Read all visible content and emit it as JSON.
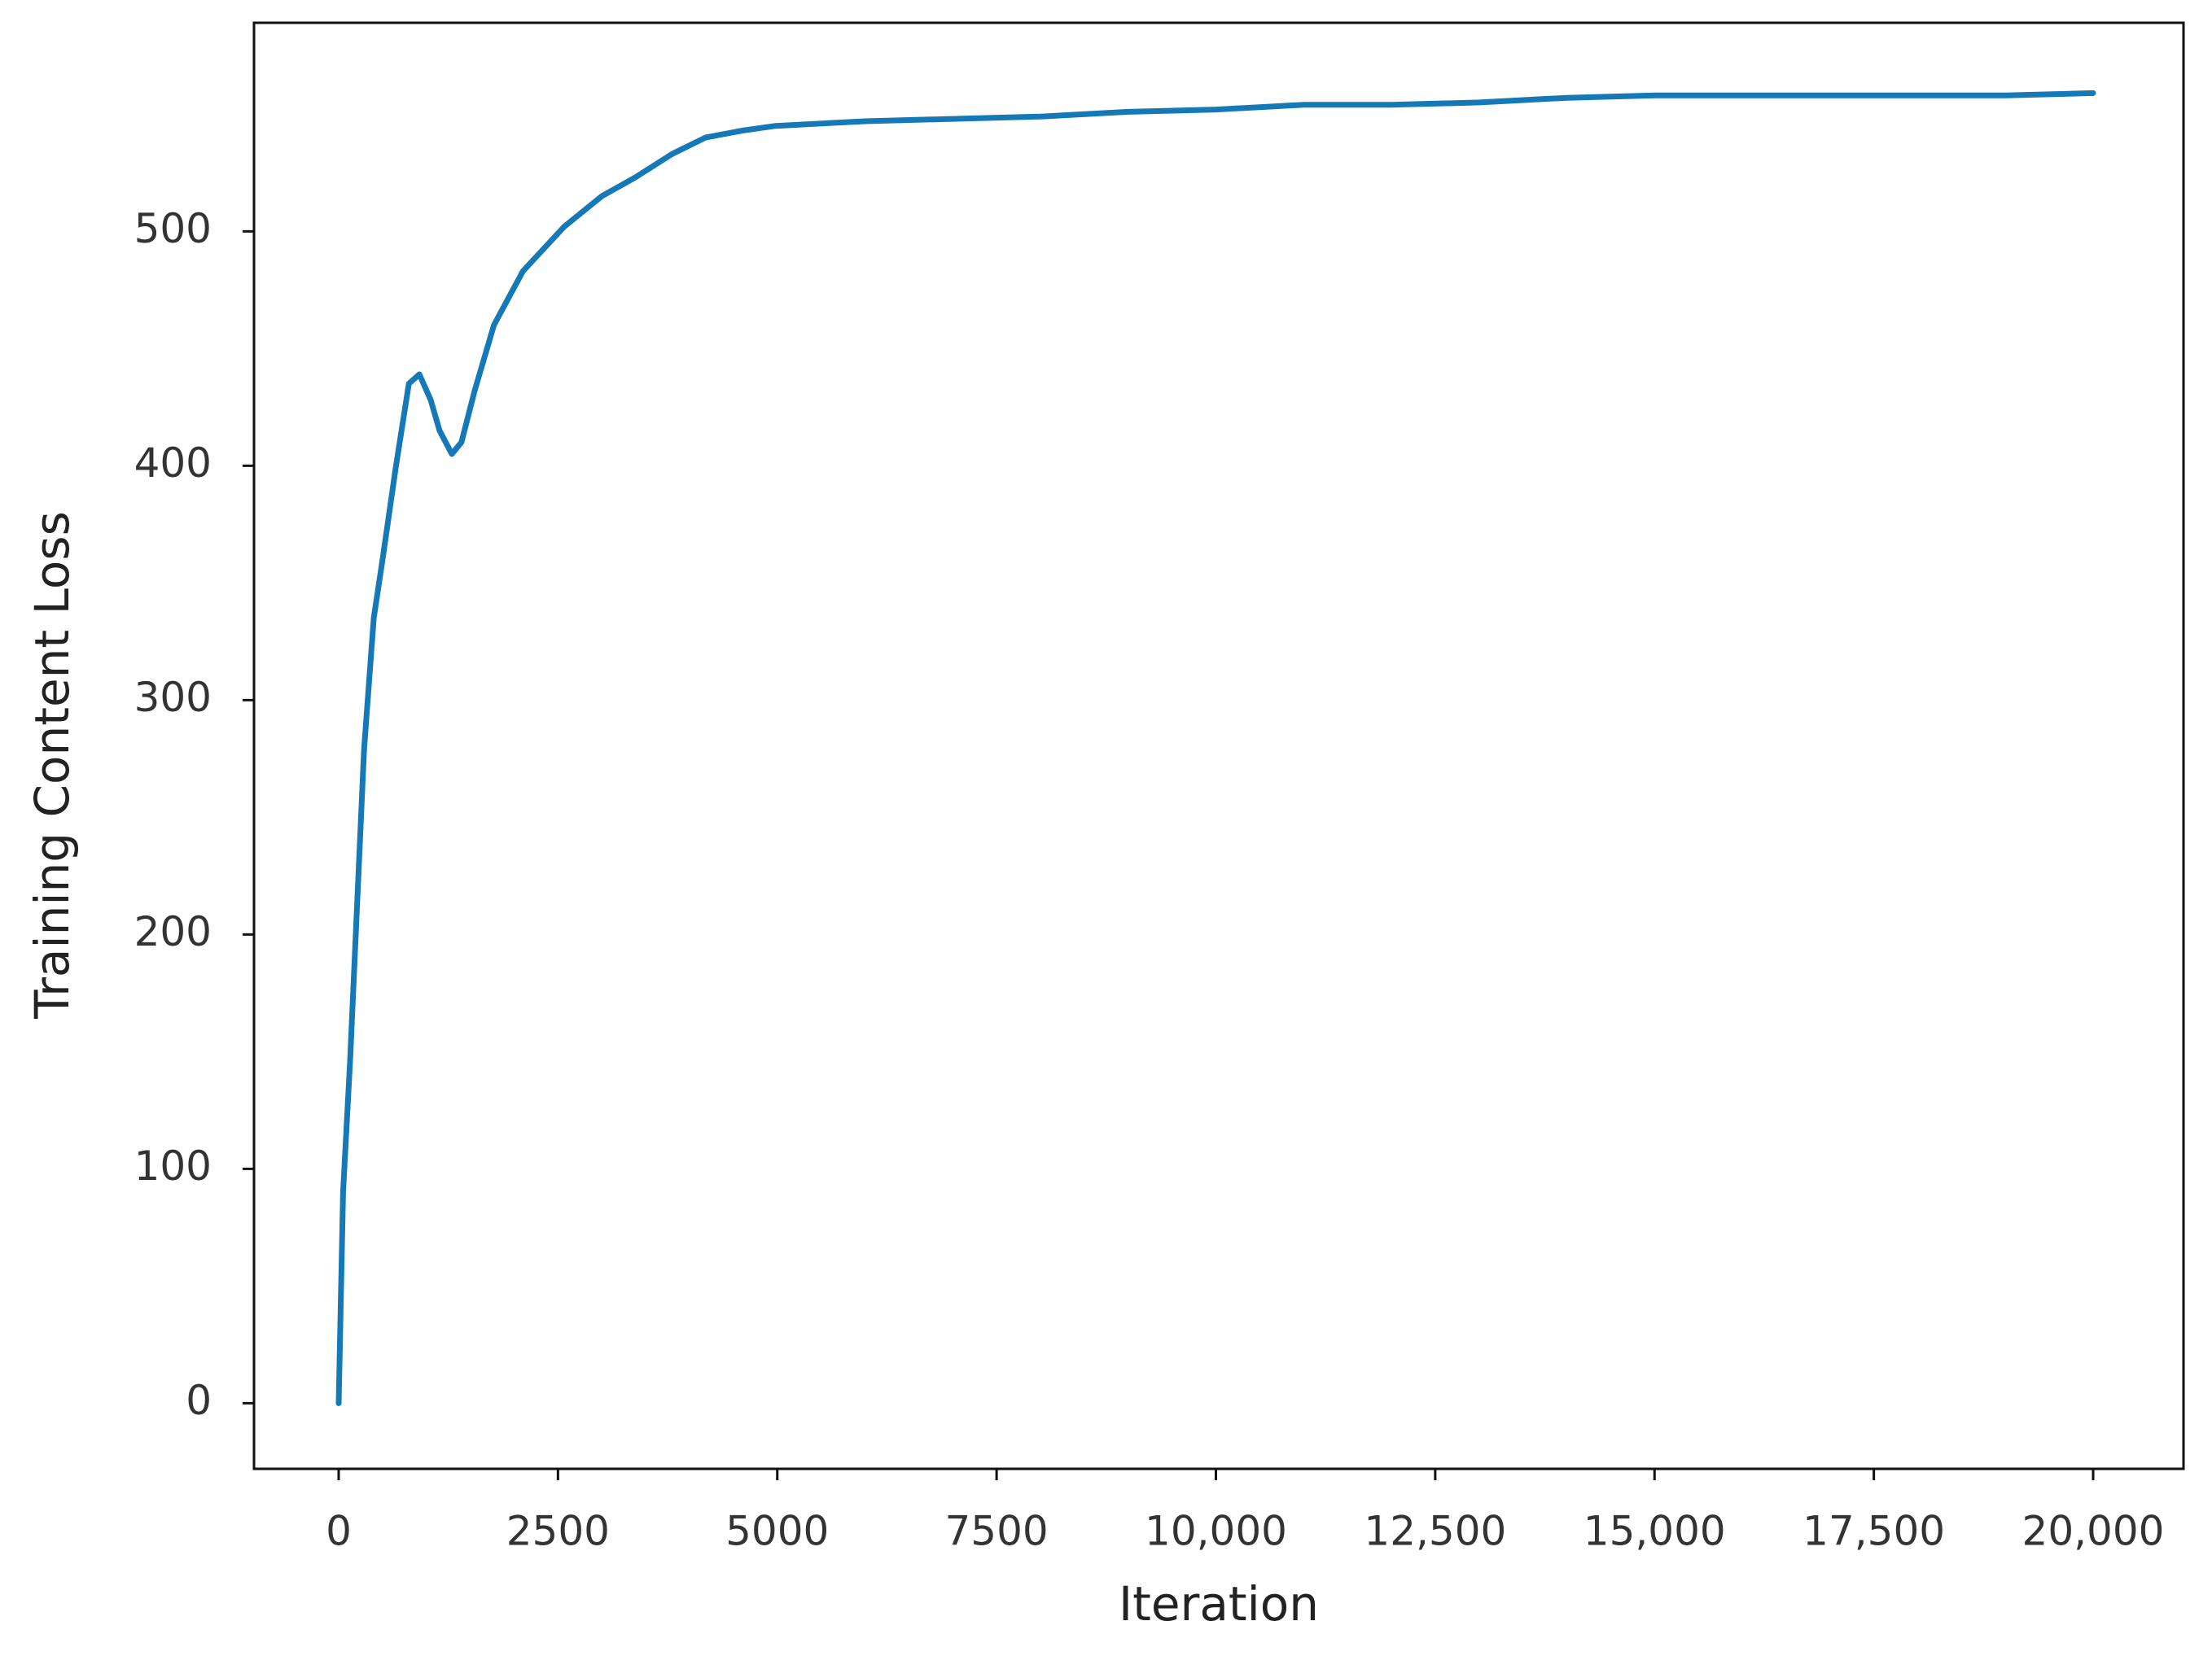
{
  "chart_data": {
    "type": "line",
    "x_label": "Iteration",
    "y_label": "Training Content Loss",
    "xlim": [
      -965,
      21030
    ],
    "ylim": [
      -28,
      589
    ],
    "xticks": [
      0,
      2500,
      5000,
      7500,
      {
        "value": 10000,
        "label": "10,000"
      },
      {
        "value": 12500,
        "label": "12,500"
      },
      {
        "value": 15000,
        "label": "15,000"
      },
      {
        "value": 17500,
        "label": "17,500"
      },
      {
        "value": 20000,
        "label": "20,000"
      }
    ],
    "yticks": [
      0,
      100,
      200,
      300,
      400,
      500
    ],
    "series": [
      {
        "name": "Training Content Loss",
        "color": "#1679b7",
        "x": [
          0,
          50,
          130,
          290,
          400,
          500,
          650,
          800,
          920,
          1050,
          1150,
          1290,
          1400,
          1550,
          1770,
          2100,
          2570,
          3000,
          3380,
          3800,
          4180,
          4600,
          4980,
          6000,
          7000,
          8000,
          9000,
          10000,
          11000,
          12000,
          13000,
          14000,
          15000,
          16000,
          17000,
          18000,
          19000,
          20000
        ],
        "values": [
          0,
          90,
          146,
          279,
          335,
          360,
          399,
          435,
          439,
          428,
          415,
          405,
          410,
          432,
          460,
          483,
          502,
          515,
          523,
          533,
          540,
          543,
          545,
          547,
          548,
          549,
          551,
          552,
          554,
          554,
          555,
          557,
          558,
          558,
          558,
          558,
          558,
          559
        ]
      }
    ]
  }
}
